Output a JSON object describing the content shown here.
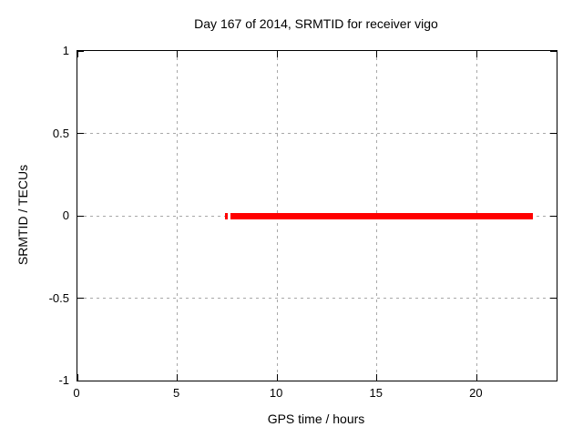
{
  "chart_data": {
    "type": "line",
    "title": "Day 167 of 2014, SRMTID for receiver vigo",
    "xlabel": "GPS time / hours",
    "ylabel": "SRMTID / TECUs",
    "xlim": [
      0,
      24
    ],
    "ylim": [
      -1,
      1
    ],
    "xticks": [
      0,
      5,
      10,
      15,
      20
    ],
    "yticks": [
      -1,
      -0.5,
      0,
      0.5,
      1
    ],
    "xtick_labels": [
      "0",
      "5",
      "10",
      "15",
      "20"
    ],
    "ytick_labels": [
      "-1",
      "-0.5",
      "0",
      "0.5",
      "1"
    ],
    "grid": true,
    "legend": "none",
    "series": [
      {
        "name": "SRMTID",
        "color": "#ff0000",
        "linewidth": 7,
        "segments": [
          {
            "x": [
              7.4,
              7.55
            ],
            "y": [
              0,
              0
            ]
          },
          {
            "x": [
              7.67,
              22.8
            ],
            "y": [
              0,
              0
            ]
          }
        ]
      }
    ]
  },
  "colors": {
    "background": "#ffffff",
    "border": "#000000",
    "text": "#000000",
    "grid": "#a8a8a8",
    "accent": "#ff0000"
  }
}
